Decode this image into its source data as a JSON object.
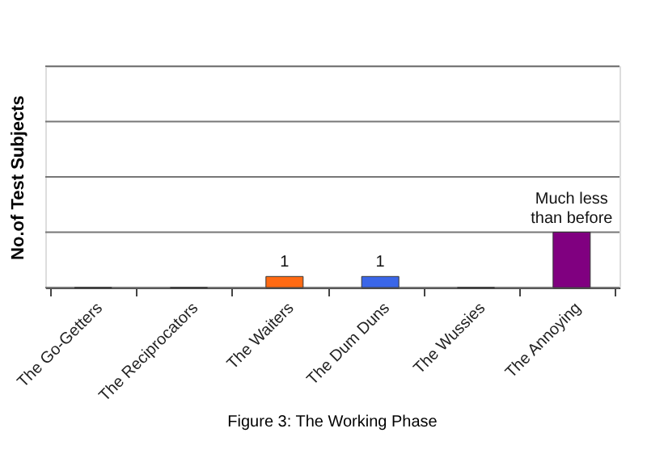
{
  "chart_data": {
    "type": "bar",
    "title": "Figure 3: The Working Phase",
    "ylabel": "No.of Test Subjects",
    "categories": [
      "The Go-Getters",
      "The Reciprocators",
      "The Waiters",
      "The Dum Duns",
      "The Wussies",
      "The Annoying"
    ],
    "values": [
      0,
      0,
      1,
      1,
      0,
      5
    ],
    "colors": [
      null,
      null,
      "#ff6a13",
      "#3a66e8",
      null,
      "#800080"
    ],
    "value_labels": [
      null,
      null,
      "1",
      "1",
      null,
      "Much less than before"
    ],
    "ylim": [
      0,
      20
    ],
    "yticks": [
      {
        "value": 0,
        "label": null
      },
      {
        "value": 5,
        "label": null
      },
      {
        "value": 10,
        "label": null
      },
      {
        "value": 15,
        "label": null
      },
      {
        "value": 20,
        "label": null
      }
    ],
    "tick_labels": "x",
    "grid": "y"
  }
}
